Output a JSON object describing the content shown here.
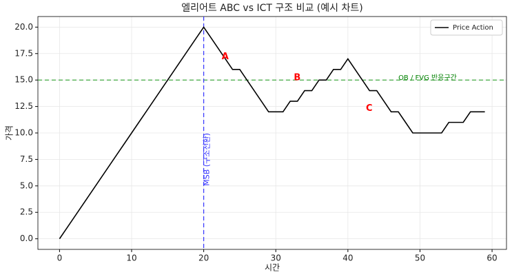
{
  "chart_data": {
    "type": "line",
    "title": "엘리어트 ABC vs ICT 구조 비교 (예시 차트)",
    "xlabel": "시간",
    "ylabel": "가격",
    "x": [
      0,
      1,
      2,
      3,
      4,
      5,
      6,
      7,
      8,
      9,
      10,
      11,
      12,
      13,
      14,
      15,
      16,
      17,
      18,
      19,
      20,
      21,
      22,
      23,
      24,
      25,
      26,
      27,
      28,
      29,
      30,
      31,
      32,
      33,
      34,
      35,
      36,
      37,
      38,
      39,
      40,
      41,
      42,
      43,
      44,
      45,
      46,
      47,
      48,
      49,
      50,
      51,
      52,
      53,
      54,
      55,
      56,
      57,
      58,
      59
    ],
    "series": [
      {
        "name": "Price Action",
        "color": "#000000",
        "values": [
          0,
          1,
          2,
          3,
          4,
          5,
          6,
          7,
          8,
          9,
          10,
          11,
          12,
          13,
          14,
          15,
          16,
          17,
          18,
          19,
          20,
          19,
          18,
          17,
          16,
          16,
          15,
          14,
          13,
          12,
          12,
          12,
          13,
          13,
          14,
          14,
          15,
          15,
          16,
          16,
          17,
          16,
          15,
          14,
          14,
          13,
          12,
          12,
          11,
          10,
          10,
          10,
          10,
          10,
          11,
          11,
          11,
          12,
          12,
          12
        ]
      }
    ],
    "xlim": [
      -3,
      62
    ],
    "ylim": [
      -1,
      21
    ],
    "xticks": [
      0,
      10,
      20,
      30,
      40,
      50,
      60
    ],
    "yticks": [
      {
        "value": 0,
        "label": "0.0"
      },
      {
        "value": 2.5,
        "label": "2.5"
      },
      {
        "value": 5,
        "label": "5.0"
      },
      {
        "value": 7.5,
        "label": "7.5"
      },
      {
        "value": 10,
        "label": "10.0"
      },
      {
        "value": 12.5,
        "label": "12.5"
      },
      {
        "value": 15,
        "label": "15.0"
      },
      {
        "value": 17.5,
        "label": "17.5"
      },
      {
        "value": 20,
        "label": "20.0"
      }
    ],
    "grid": true,
    "legend": "upper right",
    "hlines": [
      {
        "value": 15,
        "color": "#2ca02c"
      }
    ],
    "vlines": [
      {
        "value": 20,
        "color": "#3333ff",
        "label": "MSB (구조전환)"
      }
    ],
    "annotations": [
      {
        "text": "A",
        "x": 22.5,
        "y": 17.2,
        "color": "#ff0000"
      },
      {
        "text": "B",
        "x": 32.5,
        "y": 15.2,
        "color": "#ff0000"
      },
      {
        "text": "C",
        "x": 42.5,
        "y": 12.3,
        "color": "#ff0000"
      },
      {
        "text": "OB / FVG 반응구간",
        "x": 47,
        "y": 15.2,
        "color": "#008000"
      }
    ]
  }
}
